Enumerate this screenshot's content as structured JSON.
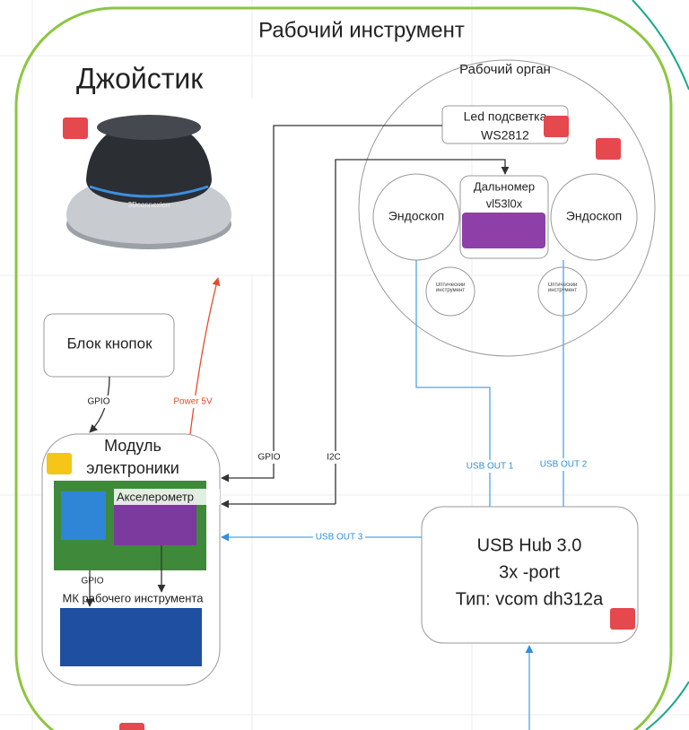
{
  "title": "Рабочий инструмент",
  "joystick": {
    "title": "Джойстик",
    "brand": "3Dconnexion"
  },
  "working_organ": {
    "title": "Рабочий орган",
    "led": [
      "Led подсветка",
      "WS2812"
    ],
    "rangefinder": [
      "Дальномер",
      "vl53l0x"
    ],
    "endoscopes": [
      "Эндоскоп",
      "Эндоскоп"
    ],
    "optical_tools": [
      "Оптический инструмент",
      "Оптический инструмент"
    ]
  },
  "button_block": "Блок кнопок",
  "electronics": {
    "title": [
      "Модуль",
      "электроники"
    ],
    "accelerometer": "Акселерометр",
    "gpio": "GPIO",
    "mcu": "МК рабочего инструмента"
  },
  "usb_hub": [
    "USB Hub 3.0",
    "3x -port",
    "Тип: vcom dh312a"
  ],
  "connections": {
    "buttons_gpio": "GPIO",
    "power": "Power 5V",
    "led_gpio": "GPIO",
    "i2c": "I2C",
    "usb_out_1": "USB OUT 1",
    "usb_out_2": "USB OUT 2",
    "usb_out_3": "USB OUT 3"
  }
}
